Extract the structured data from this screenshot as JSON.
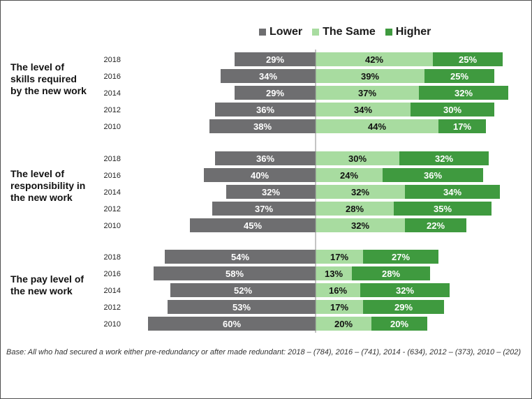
{
  "legend": {
    "lower": "Lower",
    "same": "The Same",
    "higher": "Higher"
  },
  "colors": {
    "lower": "#6e6e70",
    "same": "#a8dca0",
    "higher": "#3f9a3f",
    "axis": "#8a8a8a"
  },
  "footnote": "Base: All who had secured a work either pre-redundancy or after made redundant: 2018 – (784), 2016 – (741), 2014 - (634), 2012 – (373), 2010 – (202)",
  "chart_data": {
    "type": "bar",
    "orientation": "horizontal-diverging",
    "series": [
      {
        "name": "Lower"
      },
      {
        "name": "The Same"
      },
      {
        "name": "Higher"
      }
    ],
    "groups": [
      {
        "label": "The level of skills required by the new work",
        "rows": [
          {
            "year": "2018",
            "lower": 29,
            "same": 42,
            "higher": 25
          },
          {
            "year": "2016",
            "lower": 34,
            "same": 39,
            "higher": 25
          },
          {
            "year": "2014",
            "lower": 29,
            "same": 37,
            "higher": 32
          },
          {
            "year": "2012",
            "lower": 36,
            "same": 34,
            "higher": 30
          },
          {
            "year": "2010",
            "lower": 38,
            "same": 44,
            "higher": 17
          }
        ]
      },
      {
        "label": "The level of responsibility in the new work",
        "rows": [
          {
            "year": "2018",
            "lower": 36,
            "same": 30,
            "higher": 32
          },
          {
            "year": "2016",
            "lower": 40,
            "same": 24,
            "higher": 36
          },
          {
            "year": "2014",
            "lower": 32,
            "same": 32,
            "higher": 34
          },
          {
            "year": "2012",
            "lower": 37,
            "same": 28,
            "higher": 35
          },
          {
            "year": "2010",
            "lower": 45,
            "same": 32,
            "higher": 22
          }
        ]
      },
      {
        "label": "The pay level of the new work",
        "rows": [
          {
            "year": "2018",
            "lower": 54,
            "same": 17,
            "higher": 27
          },
          {
            "year": "2016",
            "lower": 58,
            "same": 13,
            "higher": 28
          },
          {
            "year": "2014",
            "lower": 52,
            "same": 16,
            "higher": 32
          },
          {
            "year": "2012",
            "lower": 53,
            "same": 17,
            "higher": 29
          },
          {
            "year": "2010",
            "lower": 60,
            "same": 20,
            "higher": 20
          }
        ]
      }
    ],
    "value_suffix": "%",
    "legend_position": "top"
  }
}
